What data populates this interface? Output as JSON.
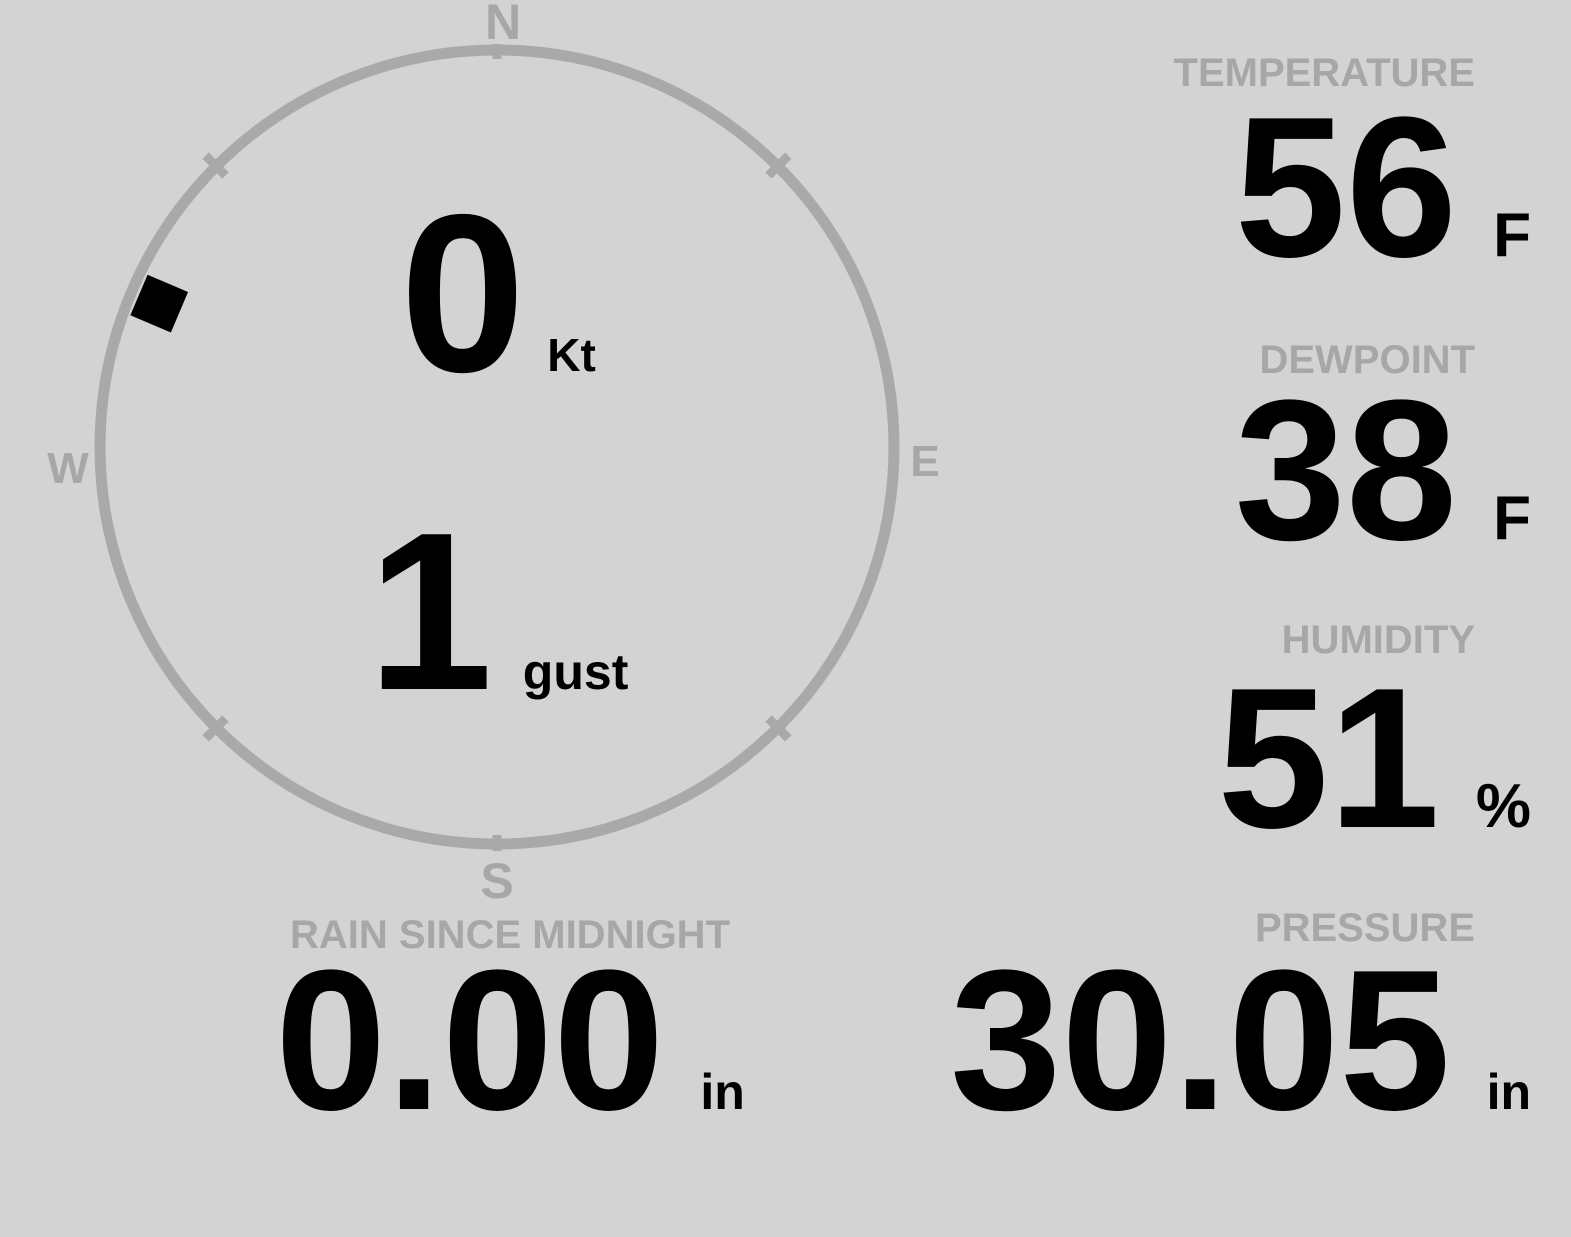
{
  "theme": {
    "background": "#d3d3d3",
    "muted_text": "#a7a7a7",
    "ring_color": "#a9a9a9",
    "value_color": "#000000"
  },
  "compass": {
    "cardinals": {
      "north": "N",
      "east": "E",
      "south": "S",
      "west": "W"
    },
    "wind_direction_deg": 293,
    "speed": {
      "value": "0",
      "unit": "Kt"
    },
    "gust": {
      "value": "1",
      "unit": "gust"
    }
  },
  "metrics": {
    "temperature": {
      "label": "TEMPERATURE",
      "value": "56",
      "unit": "F"
    },
    "dewpoint": {
      "label": "DEWPOINT",
      "value": "38",
      "unit": "F"
    },
    "humidity": {
      "label": "HUMIDITY",
      "value": "51",
      "unit": "%"
    },
    "rain": {
      "label": "RAIN SINCE MIDNIGHT",
      "value": "0.00",
      "unit": "in"
    },
    "pressure": {
      "label": "PRESSURE",
      "value": "30.05",
      "unit": "in"
    }
  }
}
